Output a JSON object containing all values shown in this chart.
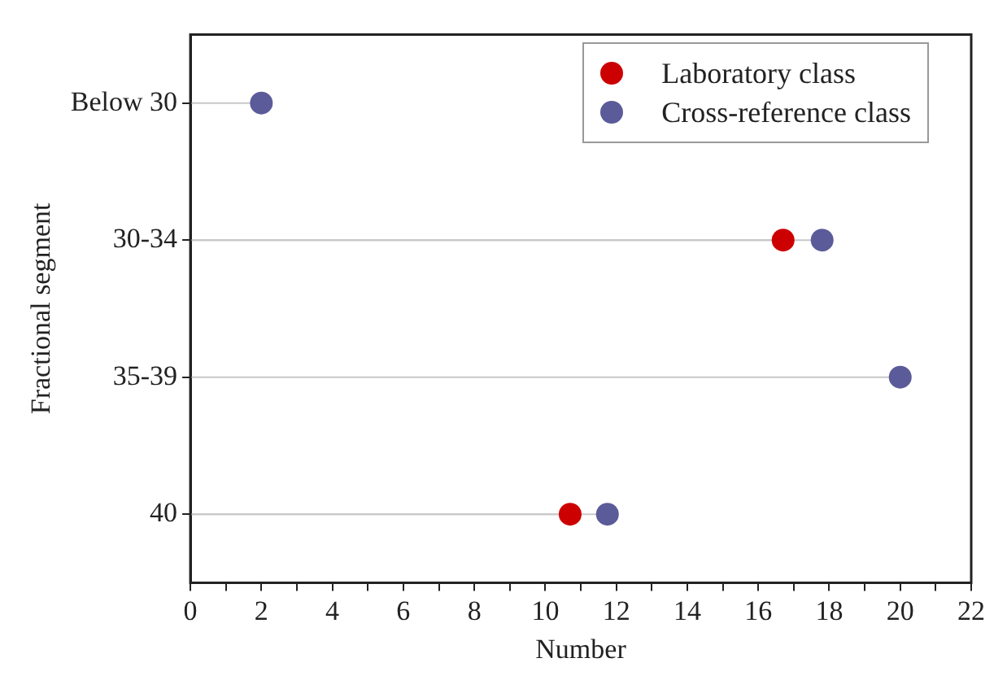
{
  "chart_data": {
    "type": "lollipop",
    "orientation": "horizontal",
    "xlabel": "Number",
    "ylabel": "Fractional segment",
    "categories": [
      "Below 30",
      "30-34",
      "35-39",
      "40"
    ],
    "series": [
      {
        "name": "Laboratory class",
        "color": "#cc0000",
        "values": [
          null,
          16.7,
          null,
          10.7
        ]
      },
      {
        "name": "Cross-reference class",
        "color": "#5b5b9a",
        "values": [
          2,
          17.8,
          20,
          11.75
        ]
      }
    ],
    "xlim": [
      0,
      22
    ],
    "xticks": [
      0,
      {
        "value": 1,
        "label": null
      },
      2,
      {
        "value": 3,
        "label": null
      },
      4,
      {
        "value": 5,
        "label": null
      },
      6,
      {
        "value": 7,
        "label": null
      },
      8,
      {
        "value": 9,
        "label": null
      },
      10,
      {
        "value": 11,
        "label": null
      },
      12,
      {
        "value": 13,
        "label": null
      },
      14,
      {
        "value": 15,
        "label": null
      },
      16,
      {
        "value": 17,
        "label": null
      },
      18,
      {
        "value": 19,
        "label": null
      },
      20,
      {
        "value": 21,
        "label": null
      },
      22
    ],
    "grid": false,
    "legend": "top right",
    "marker": "circle"
  }
}
